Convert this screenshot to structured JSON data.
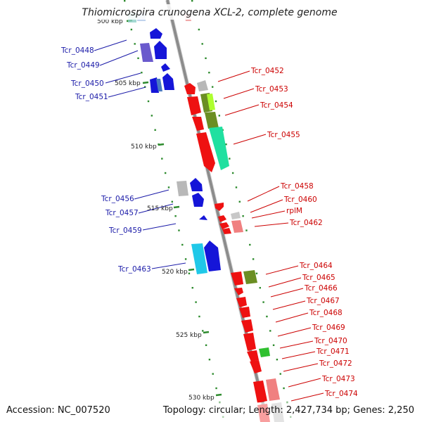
{
  "title": "Thiomicrospira crunogena XCL-2, complete genome",
  "accession": "Accession: NC_007520",
  "summary": "Topology: circular; Length: 2,427,734 bp; Genes: 2,250",
  "scale_labels": [
    "500 kbp",
    "505 kbp",
    "510 kbp",
    "515 kbp",
    "520 kbp",
    "525 kbp",
    "530 kbp"
  ],
  "colors": {
    "left_label": "#1a1aa8",
    "right_label": "#cc0000",
    "backbone": "#909090",
    "tick": "#2e8b2e"
  },
  "left_genes": [
    "Tcr_0448",
    "Tcr_0449",
    "Tcr_0450",
    "Tcr_0451",
    "Tcr_0456",
    "Tcr_0457",
    "Tcr_0459",
    "Tcr_0463"
  ],
  "right_genes": [
    "Tcr_0452",
    "Tcr_0453",
    "Tcr_0454",
    "Tcr_0455",
    "Tcr_0458",
    "Tcr_0460",
    "rplM",
    "Tcr_0462",
    "Tcr_0464",
    "Tcr_0465",
    "Tcr_0466",
    "Tcr_0467",
    "Tcr_0468",
    "Tcr_0469",
    "Tcr_0470",
    "Tcr_0471",
    "Tcr_0472",
    "Tcr_0473",
    "Tcr_0474"
  ]
}
